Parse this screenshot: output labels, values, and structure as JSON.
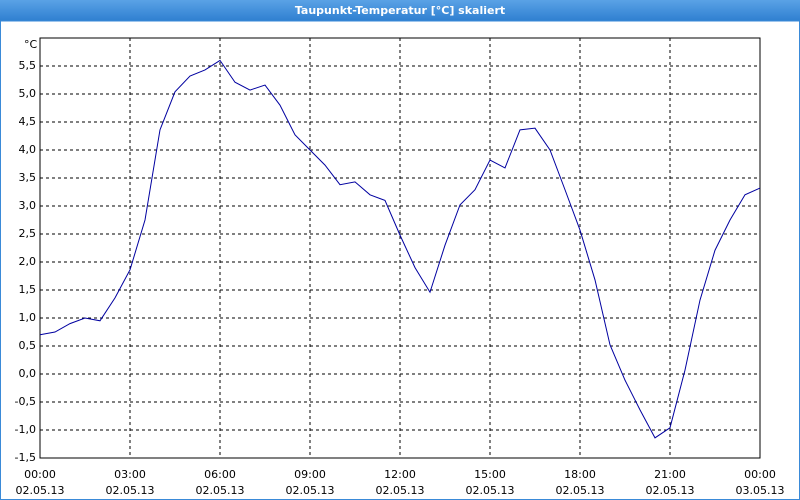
{
  "chart_data": {
    "type": "line",
    "title": "Taupunkt-Temperatur [°C] skaliert",
    "y_label": "°C",
    "color": "#0000a0",
    "grid": true,
    "x": [
      0,
      0.5,
      1,
      1.5,
      2,
      2.5,
      3,
      3.5,
      4,
      4.5,
      5,
      5.5,
      6,
      6.5,
      7,
      7.5,
      8,
      8.5,
      9,
      9.5,
      10,
      10.5,
      11,
      11.5,
      12,
      12.5,
      13,
      13.5,
      14,
      14.5,
      15,
      15.5,
      16,
      16.5,
      17,
      17.5,
      18,
      18.5,
      19,
      19.5,
      20,
      20.5,
      21,
      21.5,
      22,
      22.5,
      23,
      23.5,
      24
    ],
    "values": [
      0.7,
      0.75,
      0.9,
      1.0,
      0.95,
      1.36,
      1.86,
      2.75,
      4.36,
      5.04,
      5.32,
      5.43,
      5.6,
      5.21,
      5.07,
      5.16,
      4.8,
      4.27,
      4.0,
      3.73,
      3.38,
      3.43,
      3.2,
      3.1,
      2.48,
      1.9,
      1.46,
      2.3,
      3.02,
      3.29,
      3.82,
      3.68,
      4.36,
      4.39,
      4.0,
      3.29,
      2.57,
      1.68,
      0.52,
      -0.11,
      -0.64,
      -1.14,
      -0.96,
      0.07,
      1.32,
      2.21,
      2.75,
      3.2,
      3.32
    ],
    "xlim": [
      0,
      24
    ],
    "ylim": [
      -1.5,
      6.0
    ],
    "xticks": [
      {
        "value": 0,
        "label": "00:00",
        "date": "02.05.13"
      },
      {
        "value": 3,
        "label": "03:00",
        "date": "02.05.13"
      },
      {
        "value": 6,
        "label": "06:00",
        "date": "02.05.13"
      },
      {
        "value": 9,
        "label": "09:00",
        "date": "02.05.13"
      },
      {
        "value": 12,
        "label": "12:00",
        "date": "02.05.13"
      },
      {
        "value": 15,
        "label": "15:00",
        "date": "02.05.13"
      },
      {
        "value": 18,
        "label": "18:00",
        "date": "02.05.13"
      },
      {
        "value": 21,
        "label": "21:00",
        "date": "02.05.13"
      },
      {
        "value": 24,
        "label": "00:00",
        "date": "03.05.13"
      }
    ],
    "yticks": [
      {
        "value": -1.5,
        "label": "-1,5"
      },
      {
        "value": -1,
        "label": "-1,0"
      },
      {
        "value": -0.5,
        "label": "-0,5"
      },
      {
        "value": 0,
        "label": "0,0"
      },
      {
        "value": 0.5,
        "label": "0,5"
      },
      {
        "value": 1,
        "label": "1,0"
      },
      {
        "value": 1.5,
        "label": "1,5"
      },
      {
        "value": 2,
        "label": "2,0"
      },
      {
        "value": 2.5,
        "label": "2,5"
      },
      {
        "value": 3,
        "label": "3,0"
      },
      {
        "value": 3.5,
        "label": "3,5"
      },
      {
        "value": 4,
        "label": "4,0"
      },
      {
        "value": 4.5,
        "label": "4,5"
      },
      {
        "value": 5,
        "label": "5,0"
      },
      {
        "value": 5.5,
        "label": "5,5"
      }
    ]
  }
}
